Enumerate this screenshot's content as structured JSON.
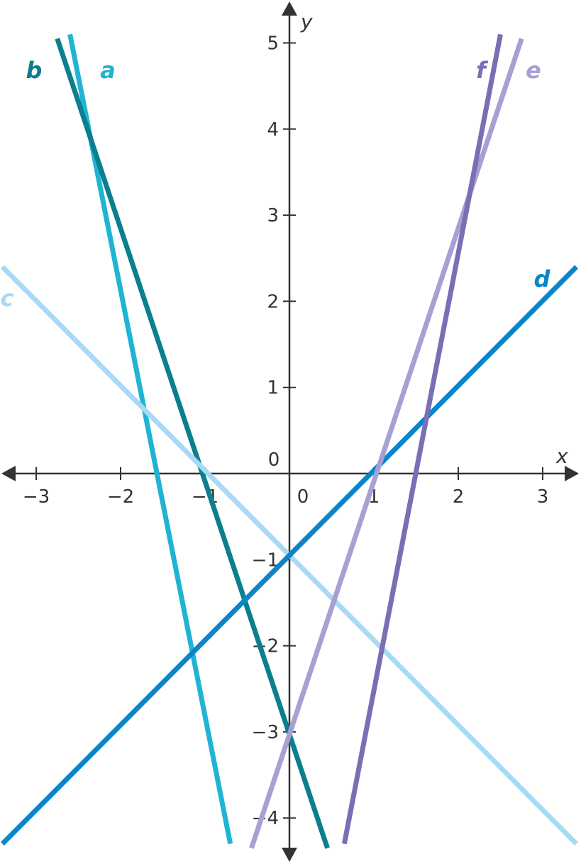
{
  "chart_data": {
    "type": "line",
    "xlabel": "x",
    "ylabel": "y",
    "xlim": [
      -3.3,
      3.4
    ],
    "ylim": [
      -4.4,
      5.3
    ],
    "grid": false,
    "x_ticks": [
      {
        "value": -3,
        "label": "−3"
      },
      {
        "value": -2,
        "label": "−2"
      },
      {
        "value": -1,
        "label": "−1"
      },
      {
        "value": 1,
        "label": "1"
      },
      {
        "value": 2,
        "label": "2"
      },
      {
        "value": 3,
        "label": "3"
      }
    ],
    "x_origin_label": "0",
    "y_ticks": [
      {
        "value": 5,
        "label": "5"
      },
      {
        "value": 4,
        "label": "4"
      },
      {
        "value": 3,
        "label": "3"
      },
      {
        "value": 2,
        "label": "2"
      },
      {
        "value": 1,
        "label": "1"
      },
      {
        "value": -1,
        "label": "−1"
      },
      {
        "value": -2,
        "label": "−2"
      },
      {
        "value": -3,
        "label": "−3"
      },
      {
        "value": -4,
        "label": "−4"
      }
    ],
    "y_origin_label": "0",
    "series": [
      {
        "name": "a",
        "color": "#1fb4d3",
        "x": [
          -2.6,
          -0.7
        ],
        "y": [
          5.1,
          -4.3
        ]
      },
      {
        "name": "b",
        "color": "#0b7f8f",
        "x": [
          -2.75,
          0.45
        ],
        "y": [
          5.05,
          -4.35
        ]
      },
      {
        "name": "c",
        "color": "#a8daf5",
        "x": [
          -3.4,
          3.4
        ],
        "y": [
          2.4,
          -4.3
        ]
      },
      {
        "name": "d",
        "color": "#0a85c9",
        "x": [
          -3.4,
          3.4
        ],
        "y": [
          -4.3,
          2.4
        ]
      },
      {
        "name": "e",
        "color": "#a7a0d2",
        "x": [
          -0.45,
          2.75
        ],
        "y": [
          -4.35,
          5.05
        ]
      },
      {
        "name": "f",
        "color": "#7a6fb4",
        "x": [
          0.65,
          2.5
        ],
        "y": [
          -4.3,
          5.1
        ]
      }
    ]
  }
}
